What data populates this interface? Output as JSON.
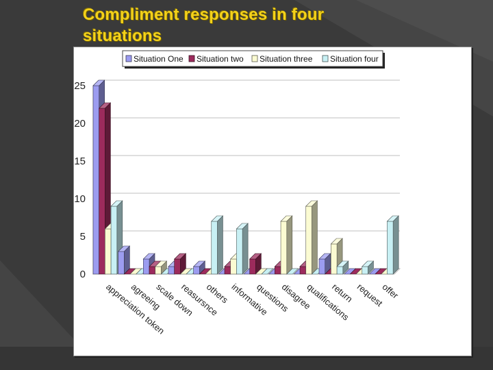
{
  "slide": {
    "title": "Compliment responses in four situations"
  },
  "colors": {
    "background": "#3a3a3a",
    "title": "#f4d21a"
  },
  "chart_data": {
    "type": "bar",
    "subtype": "3d-clustered-column",
    "title": "",
    "xlabel": "",
    "ylabel": "",
    "ylim": [
      0,
      25
    ],
    "yticks": [
      0,
      5,
      10,
      15,
      20,
      25
    ],
    "grid": true,
    "legend_position": "top",
    "categories": [
      "appreciation token",
      "agreeing",
      "scale down",
      "reasursnce",
      "others",
      "informative",
      "questions",
      "disagree",
      "qualifications",
      "return",
      "request",
      "offer"
    ],
    "series": [
      {
        "name": "Situation One",
        "color": "#9c9cf0",
        "values": [
          25,
          3,
          2,
          1,
          1,
          0,
          0,
          0,
          0,
          2,
          0,
          0
        ]
      },
      {
        "name": "Situation two",
        "color": "#9c2b5c",
        "values": [
          22,
          0,
          1,
          2,
          0,
          1,
          2,
          1,
          1,
          0,
          0,
          0
        ]
      },
      {
        "name": "Situation three",
        "color": "#fbfbd2",
        "values": [
          6,
          0,
          1,
          0,
          0,
          2,
          0,
          7,
          9,
          4,
          0,
          0
        ]
      },
      {
        "name": "Situation four",
        "color": "#c8f0f4",
        "values": [
          9,
          0,
          0,
          0,
          7,
          6,
          0,
          0,
          0,
          1,
          1,
          7
        ]
      }
    ]
  }
}
